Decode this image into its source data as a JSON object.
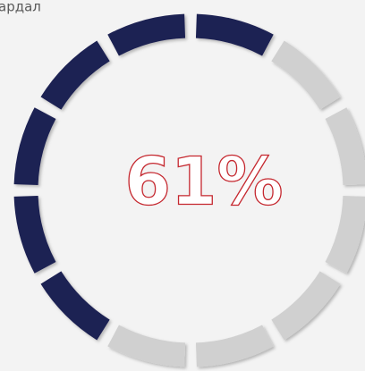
{
  "header": {
    "label": "ардал"
  },
  "gauge": {
    "text": "61%"
  }
}
